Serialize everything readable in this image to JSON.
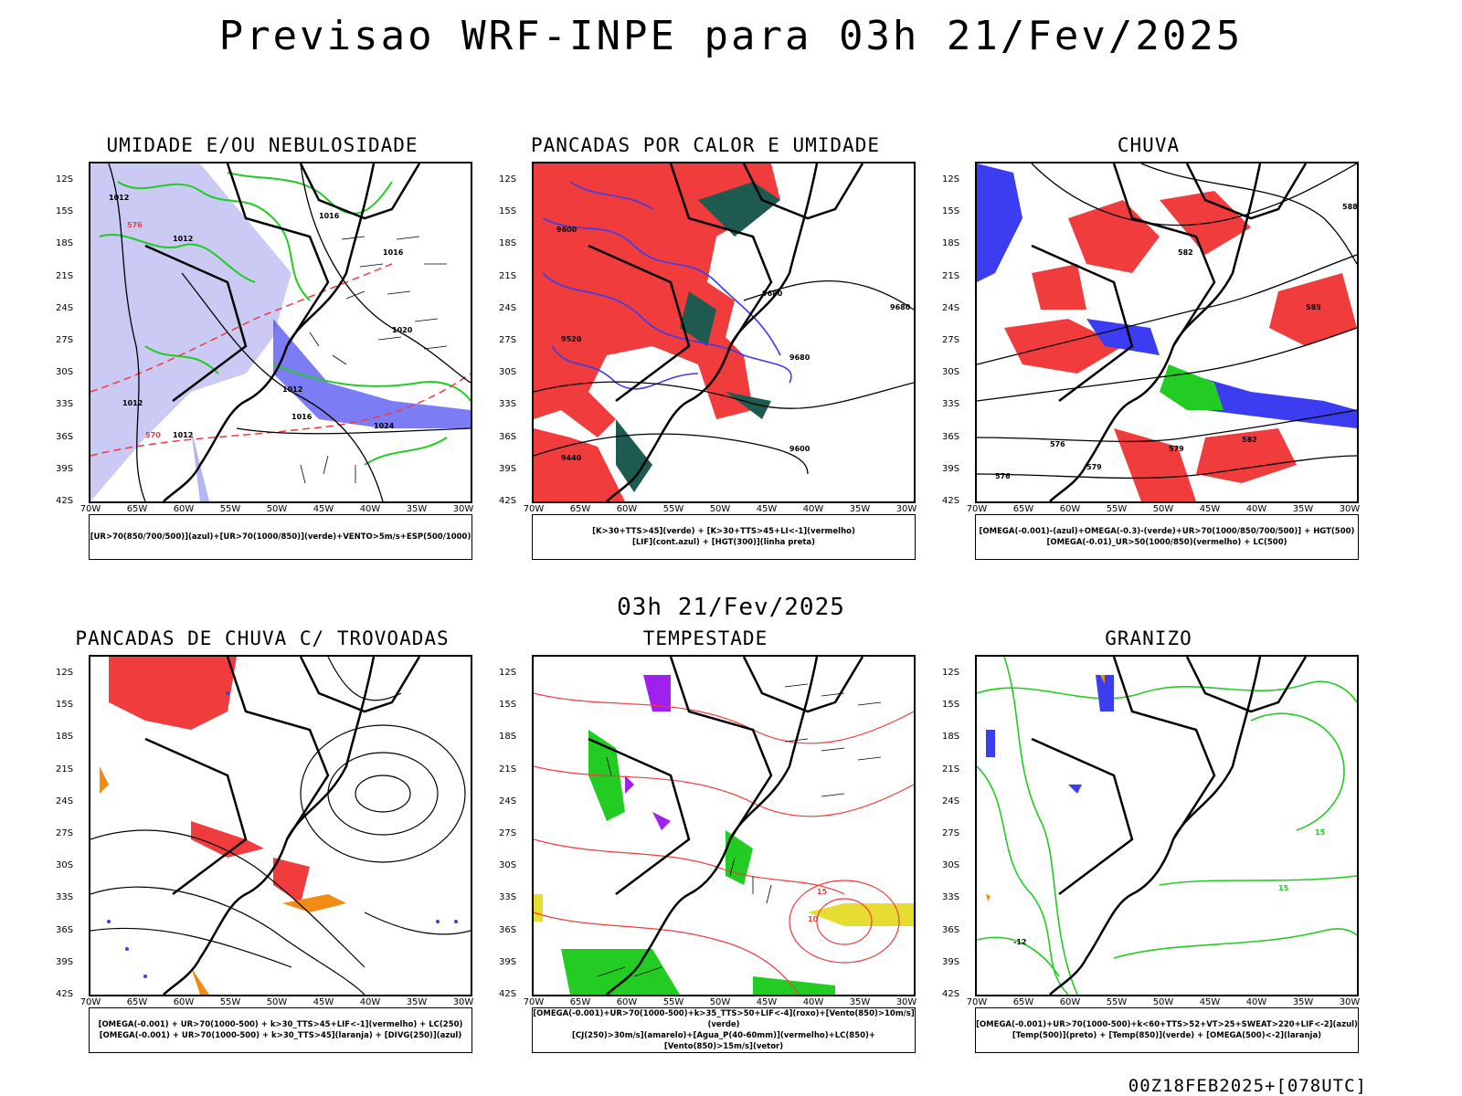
{
  "title": "Previsao WRF-INPE  para 03h 21/Fev/2025",
  "mid_time": "03h 21/Fev/2025",
  "footer": "00Z18FEB2025+[078UTC]",
  "y_ticks": [
    "12S",
    "15S",
    "18S",
    "21S",
    "24S",
    "27S",
    "30S",
    "33S",
    "36S",
    "39S",
    "42S"
  ],
  "x_ticks": [
    "70W",
    "65W",
    "60W",
    "55W",
    "50W",
    "45W",
    "40W",
    "35W",
    "30W"
  ],
  "colors": {
    "red": "#f03c3c",
    "green": "#22cc22",
    "blue": "#3c3cf0",
    "lavender": "#b4b4f0",
    "darkgreen": "#1e5a50",
    "orange": "#f08c14",
    "yellow": "#e6dc32",
    "purple": "#a020f0"
  },
  "panels": [
    {
      "title": "UMIDADE E/OU NEBULOSIDADE",
      "legend": [
        "[UR>70(850/700/500)](azul)+[UR>70(1000/850)](verde)+VENTO>5m/s+ESP(500/1000)"
      ],
      "labels": [
        "1012",
        "1012",
        "1016",
        "1016",
        "1020",
        "1024",
        "576",
        "570",
        "1012",
        "1012",
        "1016",
        "1012"
      ]
    },
    {
      "title": "PANCADAS POR CALOR E UMIDADE",
      "legend": [
        "[K>30+TTS>45](verde) + [K>30+TTS>45+LI<-1](vermelho)",
        "[LIF](cont.azul) + [HGT(300)](linha preta)"
      ],
      "labels": [
        "9680",
        "9680",
        "9600",
        "9520",
        "9440",
        "9600",
        "9680"
      ]
    },
    {
      "title": "CHUVA",
      "legend": [
        "[OMEGA(-0.001)-(azul)+OMEGA(-0.3)-(verde)+UR>70(1000/850/700/500)] + HGT(500)",
        "[OMEGA(-0.01)_UR>50(1000/850)(vermelho) + LC(500)"
      ],
      "labels": [
        "582",
        "588",
        "579",
        "576",
        "585",
        "582",
        "579",
        "576"
      ]
    },
    {
      "title": "PANCADAS DE CHUVA C/ TROVOADAS",
      "legend": [
        "[OMEGA(-0.001) + UR>70(1000-500) + k>30_TTS>45+LIF<-1](vermelho) + LC(250)",
        "[OMEGA(-0.001) + UR>70(1000-500) + k>30_TTS>45](laranja) + [DIVG(250)](azul)"
      ],
      "labels": []
    },
    {
      "title": "TEMPESTADE",
      "legend": [
        "[OMEGA(-0.001)+UR>70(1000-500)+k>35_TTS>50+LIF<-4](roxo)+[Vento(850)>10m/s](verde)",
        "[CJ(250)>30m/s](amarelo)+[Agua_P(40-60mm)](vermelho)+LC(850)+[Vento(850)>15m/s](vetor)"
      ],
      "labels": [
        "10",
        "15"
      ]
    },
    {
      "title": "GRANIZO",
      "legend": [
        "[OMEGA(-0.001)+UR>70(1000-500)+k<60+TTS>52+VT>25+SWEAT>220+LIF<-2](azul)",
        "[Temp(500)](preto) + [Temp(850)](verde) + [OMEGA(500)<-2](laranja)"
      ],
      "labels": [
        "-12",
        "15",
        "15"
      ]
    }
  ]
}
